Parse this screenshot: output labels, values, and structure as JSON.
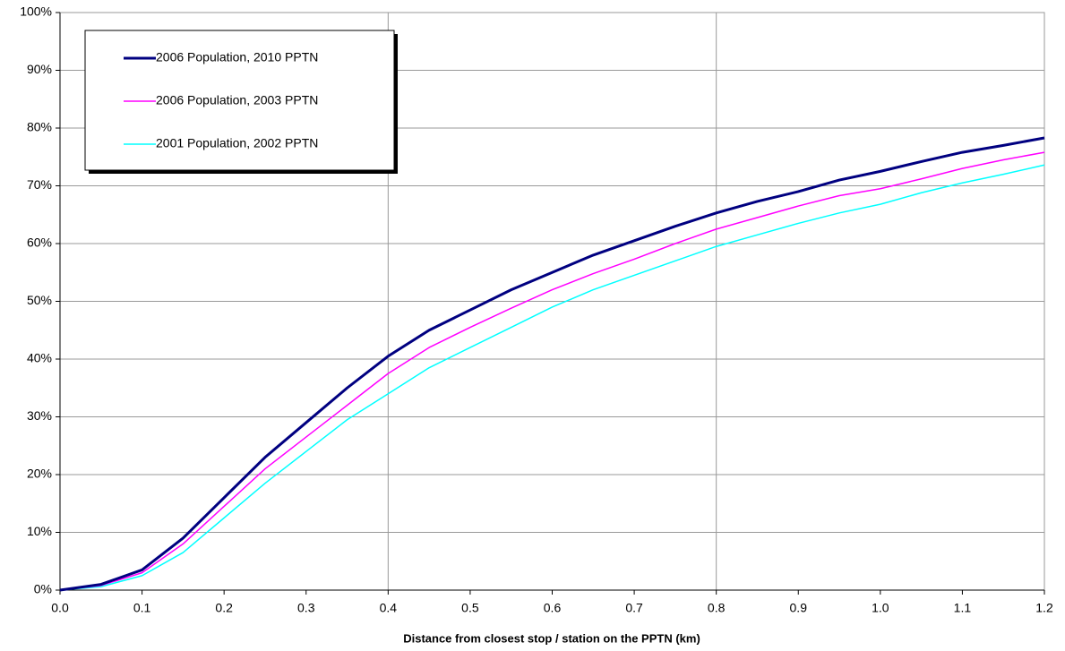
{
  "chart_data": {
    "type": "line",
    "x_label": "Distance from closest stop / station on the PPTN (km)",
    "x": [
      0,
      0.05,
      0.1,
      0.15,
      0.2,
      0.25,
      0.3,
      0.35,
      0.4,
      0.45,
      0.5,
      0.55,
      0.6,
      0.65,
      0.7,
      0.75,
      0.8,
      0.85,
      0.9,
      0.95,
      1.0,
      1.05,
      1.1,
      1.15,
      1.2
    ],
    "series": [
      {
        "name": "2006 Population, 2010 PPTN",
        "color": "#000080",
        "line_width": 3,
        "values": [
          0,
          1,
          3.5,
          9,
          16,
          23,
          29,
          35,
          40.5,
          45,
          48.5,
          52,
          55,
          58,
          60.5,
          63,
          65.3,
          67.3,
          69,
          71,
          72.5,
          74.2,
          75.8,
          77,
          78.3
        ]
      },
      {
        "name": "2006 Population, 2003 PPTN",
        "color": "#ff00ff",
        "line_width": 1.5,
        "values": [
          0,
          0.8,
          3,
          8,
          14.5,
          21,
          26.5,
          32,
          37.5,
          42,
          45.5,
          48.8,
          52,
          54.8,
          57.3,
          60,
          62.5,
          64.5,
          66.5,
          68.3,
          69.5,
          71.2,
          73,
          74.5,
          75.8
        ]
      },
      {
        "name": "2001 Population, 2002 PPTN",
        "color": "#00ffff",
        "line_width": 1.5,
        "values": [
          0,
          0.6,
          2.5,
          6.5,
          12.5,
          18.5,
          24,
          29.5,
          34,
          38.5,
          42,
          45.5,
          49,
          52,
          54.5,
          57,
          59.5,
          61.5,
          63.5,
          65.3,
          66.8,
          68.8,
          70.5,
          72,
          73.6
        ]
      }
    ],
    "xlim": [
      0,
      1.2
    ],
    "xticks": [
      {
        "value": 0,
        "label": "0.0"
      },
      0.1,
      0.2,
      0.3,
      0.4,
      0.5,
      0.6,
      0.7,
      0.8,
      0.9,
      {
        "value": 1,
        "label": "1.0"
      },
      1.1,
      1.2
    ],
    "ylim": [
      0,
      100
    ],
    "yticks": [
      {
        "value": 0,
        "label": "0%"
      },
      {
        "value": 10,
        "label": "10%"
      },
      {
        "value": 20,
        "label": "20%"
      },
      {
        "value": 30,
        "label": "30%"
      },
      {
        "value": 40,
        "label": "40%"
      },
      {
        "value": 50,
        "label": "50%"
      },
      {
        "value": 60,
        "label": "60%"
      },
      {
        "value": 70,
        "label": "70%"
      },
      {
        "value": 80,
        "label": "80%"
      },
      {
        "value": 90,
        "label": "90%"
      },
      {
        "value": 100,
        "label": "100%"
      }
    ],
    "vlines": [
      0.4,
      0.8
    ],
    "grid": true,
    "legend": "upper left"
  }
}
